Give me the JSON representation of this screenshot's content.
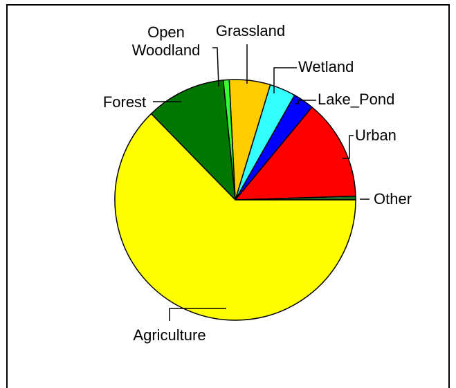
{
  "chart_data": {
    "type": "pie",
    "title": "",
    "slices": [
      {
        "label": "Other",
        "value": 0.5,
        "color": "#1f6b2a"
      },
      {
        "label": "Urban",
        "value": 13.5,
        "color": "#ff0000"
      },
      {
        "label": "Lake_Pond",
        "value": 2.8,
        "color": "#0000ff"
      },
      {
        "label": "Wetland",
        "value": 3.5,
        "color": "#33ffff"
      },
      {
        "label": "Grassland",
        "value": 5.5,
        "color": "#ffcc00"
      },
      {
        "label": "Open\nWoodland",
        "value": 0.8,
        "color": "#33ff33"
      },
      {
        "label": "Forest",
        "value": 10.7,
        "color": "#007800"
      },
      {
        "label": "Agriculture",
        "value": 62.7,
        "color": "#ffff00"
      }
    ],
    "legend": "leader-line labels",
    "grid": false
  }
}
